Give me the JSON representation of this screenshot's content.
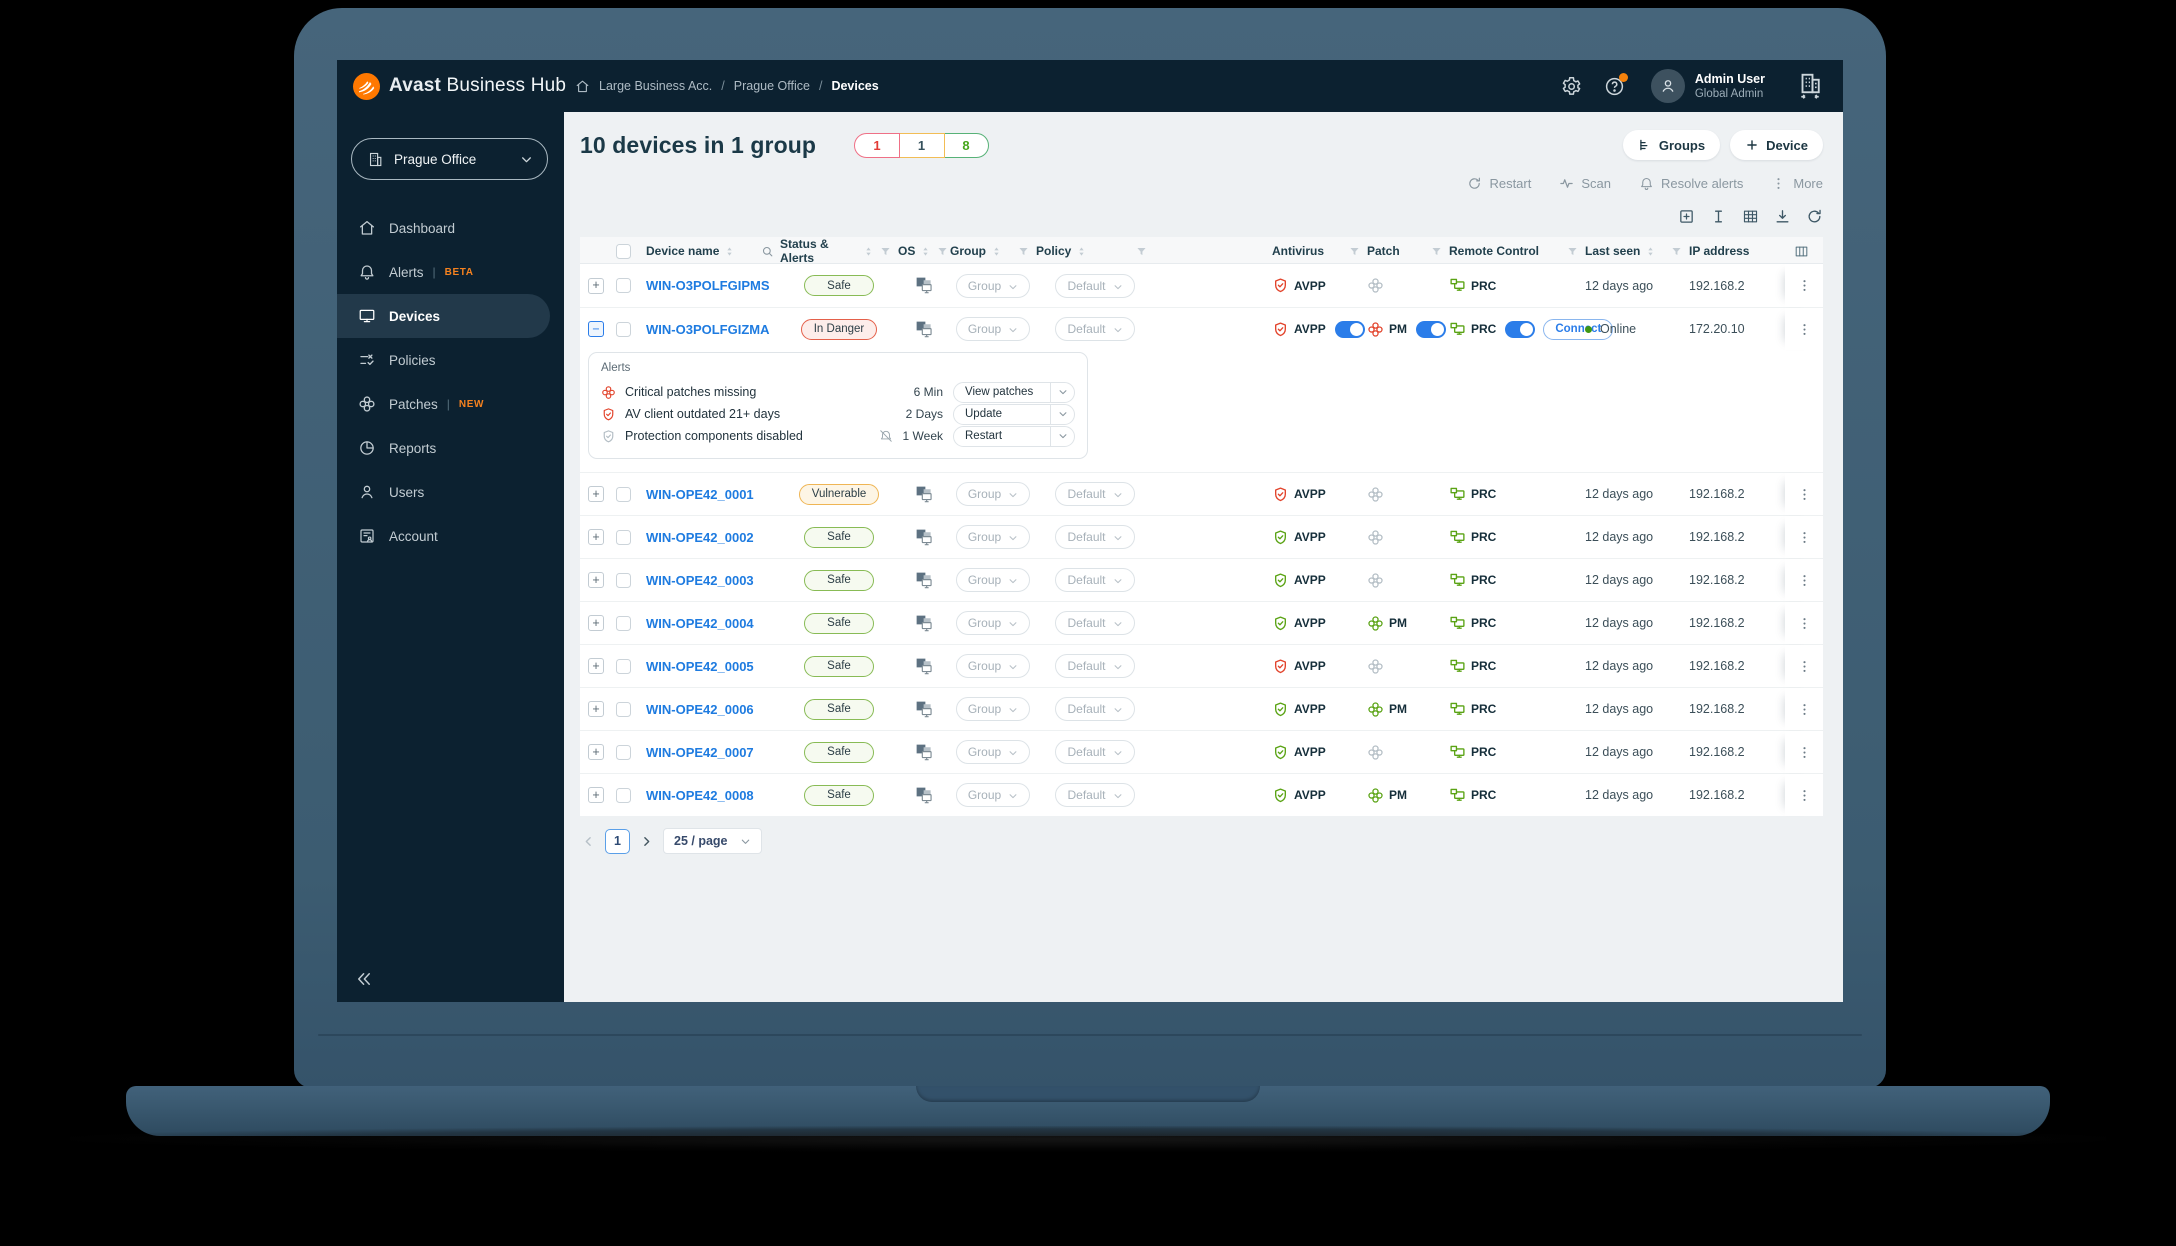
{
  "topbar": {
    "brand_bold": "Avast",
    "brand_light": "Business Hub",
    "breadcrumb": [
      "Large Business Acc.",
      "Prague Office",
      "Devices"
    ],
    "icons": [
      "settings-gear-icon",
      "help-icon-with-notification-dot",
      "org-switcher-icon"
    ],
    "user_name": "Admin User",
    "user_role": "Global Admin"
  },
  "sidebar": {
    "org_selector": "Prague Office",
    "items": [
      {
        "label": "Dashboard",
        "icon": "home"
      },
      {
        "label": "Alerts",
        "icon": "bell",
        "badge": "BETA"
      },
      {
        "label": "Devices",
        "icon": "monitor",
        "active": true
      },
      {
        "label": "Policies",
        "icon": "policies"
      },
      {
        "label": "Patches",
        "icon": "patch",
        "badge": "NEW"
      },
      {
        "label": "Reports",
        "icon": "reports"
      },
      {
        "label": "Users",
        "icon": "users"
      },
      {
        "label": "Account",
        "icon": "account"
      }
    ]
  },
  "header": {
    "title": "10 devices in 1 group",
    "counts": [
      {
        "value": "1",
        "color": "red"
      },
      {
        "value": "1",
        "color": "orange"
      },
      {
        "value": "8",
        "color": "green"
      }
    ],
    "groups_button": "Groups",
    "device_button": "Device",
    "actions": [
      {
        "icon": "restart",
        "label": "Restart"
      },
      {
        "icon": "scan",
        "label": "Scan"
      },
      {
        "icon": "bell",
        "label": "Resolve alerts"
      },
      {
        "icon": "dots",
        "label": "More"
      }
    ],
    "view_icons": [
      "add-row-icon",
      "text-width-icon",
      "table-density-icon",
      "export-download-icon",
      "refresh-icon"
    ]
  },
  "table": {
    "columns": [
      {
        "label": "Device name",
        "sort": true,
        "search": true
      },
      {
        "label": "Status & Alerts",
        "sort": true,
        "filter": true
      },
      {
        "label": "OS",
        "sort": true,
        "filter": true
      },
      {
        "label": "Group",
        "sort": true,
        "filter": true
      },
      {
        "label": "Policy",
        "sort": true,
        "filter": true
      },
      {
        "label": "",
        "spacer": true
      },
      {
        "label": "Antivirus",
        "filter": true
      },
      {
        "label": "Patch",
        "filter": true
      },
      {
        "label": "Remote Control",
        "filter": true
      },
      {
        "label": "Last seen",
        "sort": true,
        "filter": true
      },
      {
        "label": "IP address",
        "clip": true
      },
      {
        "label": "",
        "menu": true
      }
    ],
    "rows": [
      {
        "name": "WIN-O3POLFGIPMS",
        "status": "Safe",
        "status_type": "safe",
        "group": "Group",
        "policy": "Default",
        "av": {
          "label": "AVPP",
          "color": "red"
        },
        "patch": {
          "color": "grey"
        },
        "rc": {
          "label": "PRC"
        },
        "last_seen": "12 days ago",
        "ip": "192.168.2"
      },
      {
        "name": "WIN-O3POLFGIZMA",
        "status": "In Danger",
        "status_type": "danger",
        "expanded": true,
        "group": "Group",
        "policy": "Default",
        "av": {
          "label": "AVPP",
          "color": "red",
          "toggle": true
        },
        "patch": {
          "label": "PM",
          "color": "red",
          "toggle": true
        },
        "rc": {
          "label": "PRC",
          "toggle": true,
          "connect": "Connect"
        },
        "last_seen": "Online",
        "online": true,
        "ip": "172.20.10"
      },
      {
        "name": "WIN-OPE42_0001",
        "status": "Vulnerable",
        "status_type": "warn",
        "group": "Group",
        "policy": "Default",
        "av": {
          "label": "AVPP",
          "color": "red"
        },
        "patch": {
          "color": "grey"
        },
        "rc": {
          "label": "PRC"
        },
        "last_seen": "12 days ago",
        "ip": "192.168.2"
      },
      {
        "name": "WIN-OPE42_0002",
        "status": "Safe",
        "status_type": "safe",
        "group": "Group",
        "policy": "Default",
        "av": {
          "label": "AVPP",
          "color": "green"
        },
        "patch": {
          "color": "grey"
        },
        "rc": {
          "label": "PRC"
        },
        "last_seen": "12 days ago",
        "ip": "192.168.2"
      },
      {
        "name": "WIN-OPE42_0003",
        "status": "Safe",
        "status_type": "safe",
        "group": "Group",
        "policy": "Default",
        "av": {
          "label": "AVPP",
          "color": "green"
        },
        "patch": {
          "color": "grey"
        },
        "rc": {
          "label": "PRC"
        },
        "last_seen": "12 days ago",
        "ip": "192.168.2"
      },
      {
        "name": "WIN-OPE42_0004",
        "status": "Safe",
        "status_type": "safe",
        "group": "Group",
        "policy": "Default",
        "av": {
          "label": "AVPP",
          "color": "green"
        },
        "patch": {
          "label": "PM",
          "color": "green"
        },
        "rc": {
          "label": "PRC"
        },
        "last_seen": "12 days ago",
        "ip": "192.168.2"
      },
      {
        "name": "WIN-OPE42_0005",
        "status": "Safe",
        "status_type": "safe",
        "group": "Group",
        "policy": "Default",
        "av": {
          "label": "AVPP",
          "color": "red"
        },
        "patch": {
          "color": "grey"
        },
        "rc": {
          "label": "PRC"
        },
        "last_seen": "12 days ago",
        "ip": "192.168.2"
      },
      {
        "name": "WIN-OPE42_0006",
        "status": "Safe",
        "status_type": "safe",
        "group": "Group",
        "policy": "Default",
        "av": {
          "label": "AVPP",
          "color": "green"
        },
        "patch": {
          "label": "PM",
          "color": "green"
        },
        "rc": {
          "label": "PRC"
        },
        "last_seen": "12 days ago",
        "ip": "192.168.2"
      },
      {
        "name": "WIN-OPE42_0007",
        "status": "Safe",
        "status_type": "safe",
        "group": "Group",
        "policy": "Default",
        "av": {
          "label": "AVPP",
          "color": "green"
        },
        "patch": {
          "color": "grey"
        },
        "rc": {
          "label": "PRC"
        },
        "last_seen": "12 days ago",
        "ip": "192.168.2"
      },
      {
        "name": "WIN-OPE42_0008",
        "status": "Safe",
        "status_type": "safe",
        "group": "Group",
        "policy": "Default",
        "av": {
          "label": "AVPP",
          "color": "green"
        },
        "patch": {
          "label": "PM",
          "color": "green"
        },
        "rc": {
          "label": "PRC"
        },
        "last_seen": "12 days ago",
        "ip": "192.168.2"
      }
    ]
  },
  "alerts_panel": {
    "title": "Alerts",
    "items": [
      {
        "icon": "patch-red-icon",
        "text": "Critical patches missing",
        "time": "6 Min",
        "action": "View patches"
      },
      {
        "icon": "shield-red-icon",
        "text": "AV client outdated 21+ days",
        "time": "2 Days",
        "action": "Update"
      },
      {
        "icon": "shield-grey-icon",
        "text": "Protection components disabled",
        "muted_icon": true,
        "time": "1 Week",
        "action": "Restart"
      }
    ]
  },
  "pagination": {
    "page": "1",
    "page_size": "25 / page"
  },
  "colors": {
    "accent_orange": "#f5820c",
    "link_blue": "#1e7be0",
    "toggle_blue": "#2b7de9",
    "status_green": "#5aa314",
    "status_red": "#e2432b",
    "navy": "#0c2130"
  }
}
